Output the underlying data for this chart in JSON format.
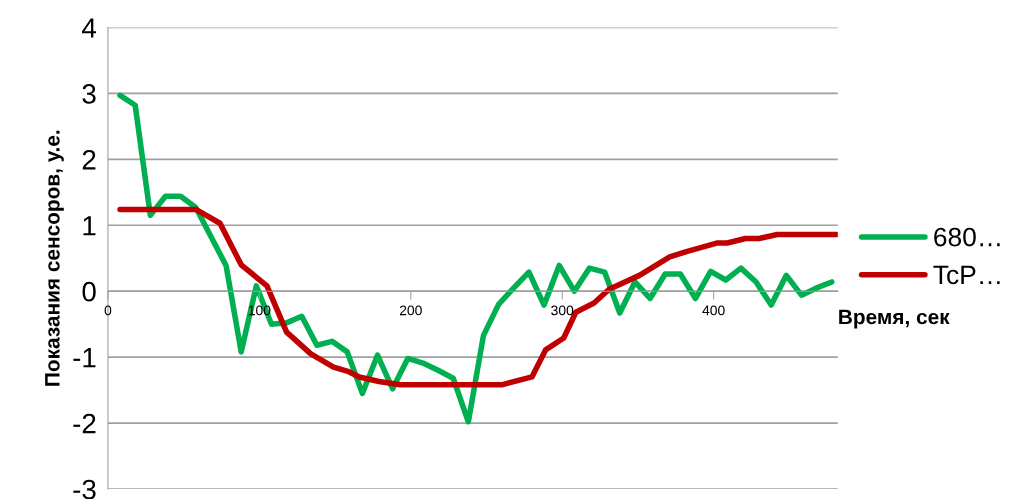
{
  "chart_data": {
    "type": "line",
    "xlabel": "Время, сек",
    "ylabel": "Показания сенсоров, у.е.",
    "xlim": [
      0,
      482
    ],
    "xticks": [
      0,
      100,
      200,
      300,
      400
    ],
    "ylim": [
      -3,
      4
    ],
    "yticks": [
      -3,
      -2,
      -1,
      0,
      1,
      2,
      3,
      4
    ],
    "grid": "y",
    "legend": "right",
    "marker": "none",
    "line_style": "solid",
    "series": [
      {
        "name": "680…",
        "color": "#00b050",
        "x": [
          8,
          18,
          28,
          38,
          48,
          58,
          68,
          78,
          88,
          98,
          108,
          118,
          128,
          138,
          148,
          158,
          168,
          178,
          188,
          198,
          208,
          218,
          228,
          238,
          248,
          258,
          268,
          278,
          288,
          298,
          308,
          318,
          328,
          338,
          348,
          358,
          368,
          378,
          388,
          398,
          408,
          418,
          428,
          438,
          448,
          458,
          468,
          478
        ],
        "values": [
          2.97,
          2.82,
          1.15,
          1.44,
          1.44,
          1.27,
          0.83,
          0.39,
          -0.92,
          0.08,
          -0.5,
          -0.48,
          -0.38,
          -0.82,
          -0.76,
          -0.92,
          -1.55,
          -0.97,
          -1.48,
          -1.02,
          -1.09,
          -1.2,
          -1.32,
          -1.98,
          -0.67,
          -0.2,
          0.05,
          0.29,
          -0.21,
          0.39,
          0.0,
          0.35,
          0.29,
          -0.33,
          0.14,
          -0.11,
          0.26,
          0.26,
          -0.11,
          0.3,
          0.17,
          0.35,
          0.14,
          -0.21,
          0.24,
          -0.06,
          0.05,
          0.14
        ]
      },
      {
        "name": "TcP…",
        "color": "#c00000",
        "x": [
          8,
          58,
          74,
          88,
          105,
          118,
          134,
          149,
          159,
          166,
          179,
          193,
          260,
          280,
          289,
          301,
          309,
          321,
          331,
          351,
          371,
          382,
          402,
          409,
          421,
          430,
          442,
          481
        ],
        "values": [
          1.24,
          1.24,
          1.03,
          0.4,
          0.08,
          -0.62,
          -0.95,
          -1.15,
          -1.22,
          -1.3,
          -1.37,
          -1.42,
          -1.42,
          -1.3,
          -0.89,
          -0.71,
          -0.32,
          -0.18,
          0.03,
          0.24,
          0.52,
          0.6,
          0.73,
          0.73,
          0.8,
          0.8,
          0.86,
          0.86
        ]
      }
    ]
  }
}
